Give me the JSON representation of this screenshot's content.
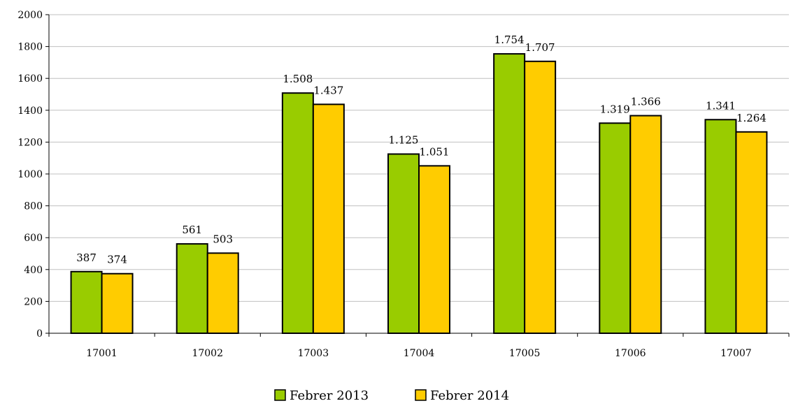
{
  "chart_data": {
    "type": "bar",
    "categories": [
      "17001",
      "17002",
      "17003",
      "17004",
      "17005",
      "17006",
      "17007"
    ],
    "series": [
      {
        "name": "Febrer 2013",
        "values": [
          387,
          561,
          1508,
          1125,
          1754,
          1319,
          1341
        ],
        "labels": [
          "387",
          "561",
          "1.508",
          "1.125",
          "1.754",
          "1.319",
          "1.341"
        ],
        "color": "#99CC00"
      },
      {
        "name": "Febrer 2014",
        "values": [
          374,
          503,
          1437,
          1051,
          1707,
          1366,
          1264
        ],
        "labels": [
          "374",
          "503",
          "1.437",
          "1.051",
          "1.707",
          "1.366",
          "1.264"
        ],
        "color": "#FFCC00"
      }
    ],
    "ylim": [
      0,
      2000
    ],
    "yticks": [
      "0",
      "200",
      "400",
      "600",
      "800",
      "1000",
      "1200",
      "1400",
      "1600",
      "1800",
      "2000"
    ],
    "grid": true,
    "legend_position": "bottom-center"
  }
}
